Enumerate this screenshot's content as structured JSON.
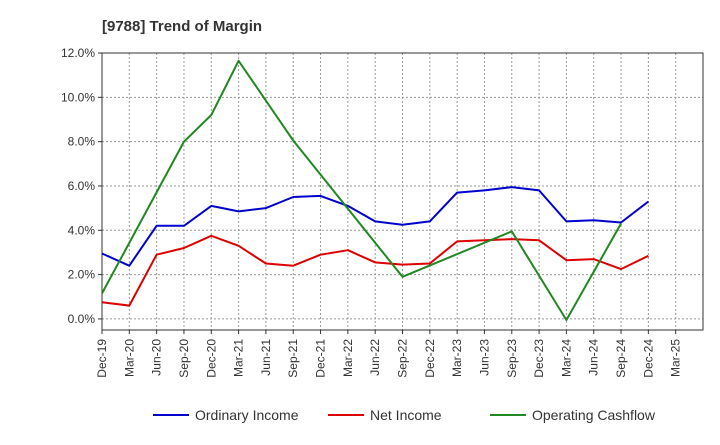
{
  "chart_data": {
    "type": "line",
    "title": "[9788]  Trend of Margin",
    "categories": [
      "Dec-19",
      "Mar-20",
      "Jun-20",
      "Sep-20",
      "Dec-20",
      "Mar-21",
      "Jun-21",
      "Sep-21",
      "Dec-21",
      "Mar-22",
      "Jun-22",
      "Sep-22",
      "Dec-22",
      "Mar-23",
      "Jun-23",
      "Sep-23",
      "Dec-23",
      "Mar-24",
      "Jun-24",
      "Sep-24",
      "Dec-24",
      "Mar-25"
    ],
    "y_ticks": [
      "12.0%",
      "10.0%",
      "8.0%",
      "6.0%",
      "4.0%",
      "2.0%",
      "0.0%"
    ],
    "y_tick_values": [
      12,
      10,
      8,
      6,
      4,
      2,
      0
    ],
    "ylim": [
      -0.5,
      12.0
    ],
    "grid": true,
    "legend_position": "bottom",
    "series": [
      {
        "name": "Ordinary Income",
        "color": "#0000cc",
        "values": [
          2.95,
          2.4,
          4.2,
          4.2,
          5.1,
          4.85,
          5.0,
          5.5,
          5.55,
          5.1,
          4.4,
          4.25,
          4.4,
          5.7,
          5.8,
          5.95,
          5.8,
          4.4,
          4.45,
          4.35,
          5.3,
          null
        ]
      },
      {
        "name": "Net Income",
        "color": "#dd0000",
        "values": [
          0.75,
          0.6,
          2.9,
          3.2,
          3.75,
          3.3,
          2.5,
          2.4,
          2.9,
          3.1,
          2.55,
          2.45,
          2.5,
          3.5,
          3.55,
          3.6,
          3.55,
          2.65,
          2.7,
          2.25,
          2.85,
          null
        ]
      },
      {
        "name": "Operating Cashflow",
        "color": "#228822",
        "values": [
          1.15,
          null,
          null,
          8.0,
          9.2,
          11.65,
          null,
          8.05,
          null,
          null,
          null,
          1.9,
          null,
          null,
          null,
          3.95,
          null,
          -0.05,
          null,
          4.3,
          null,
          null
        ]
      }
    ]
  },
  "colors": {
    "grid": "#999999",
    "axis": "#333333",
    "text": "#333333"
  }
}
